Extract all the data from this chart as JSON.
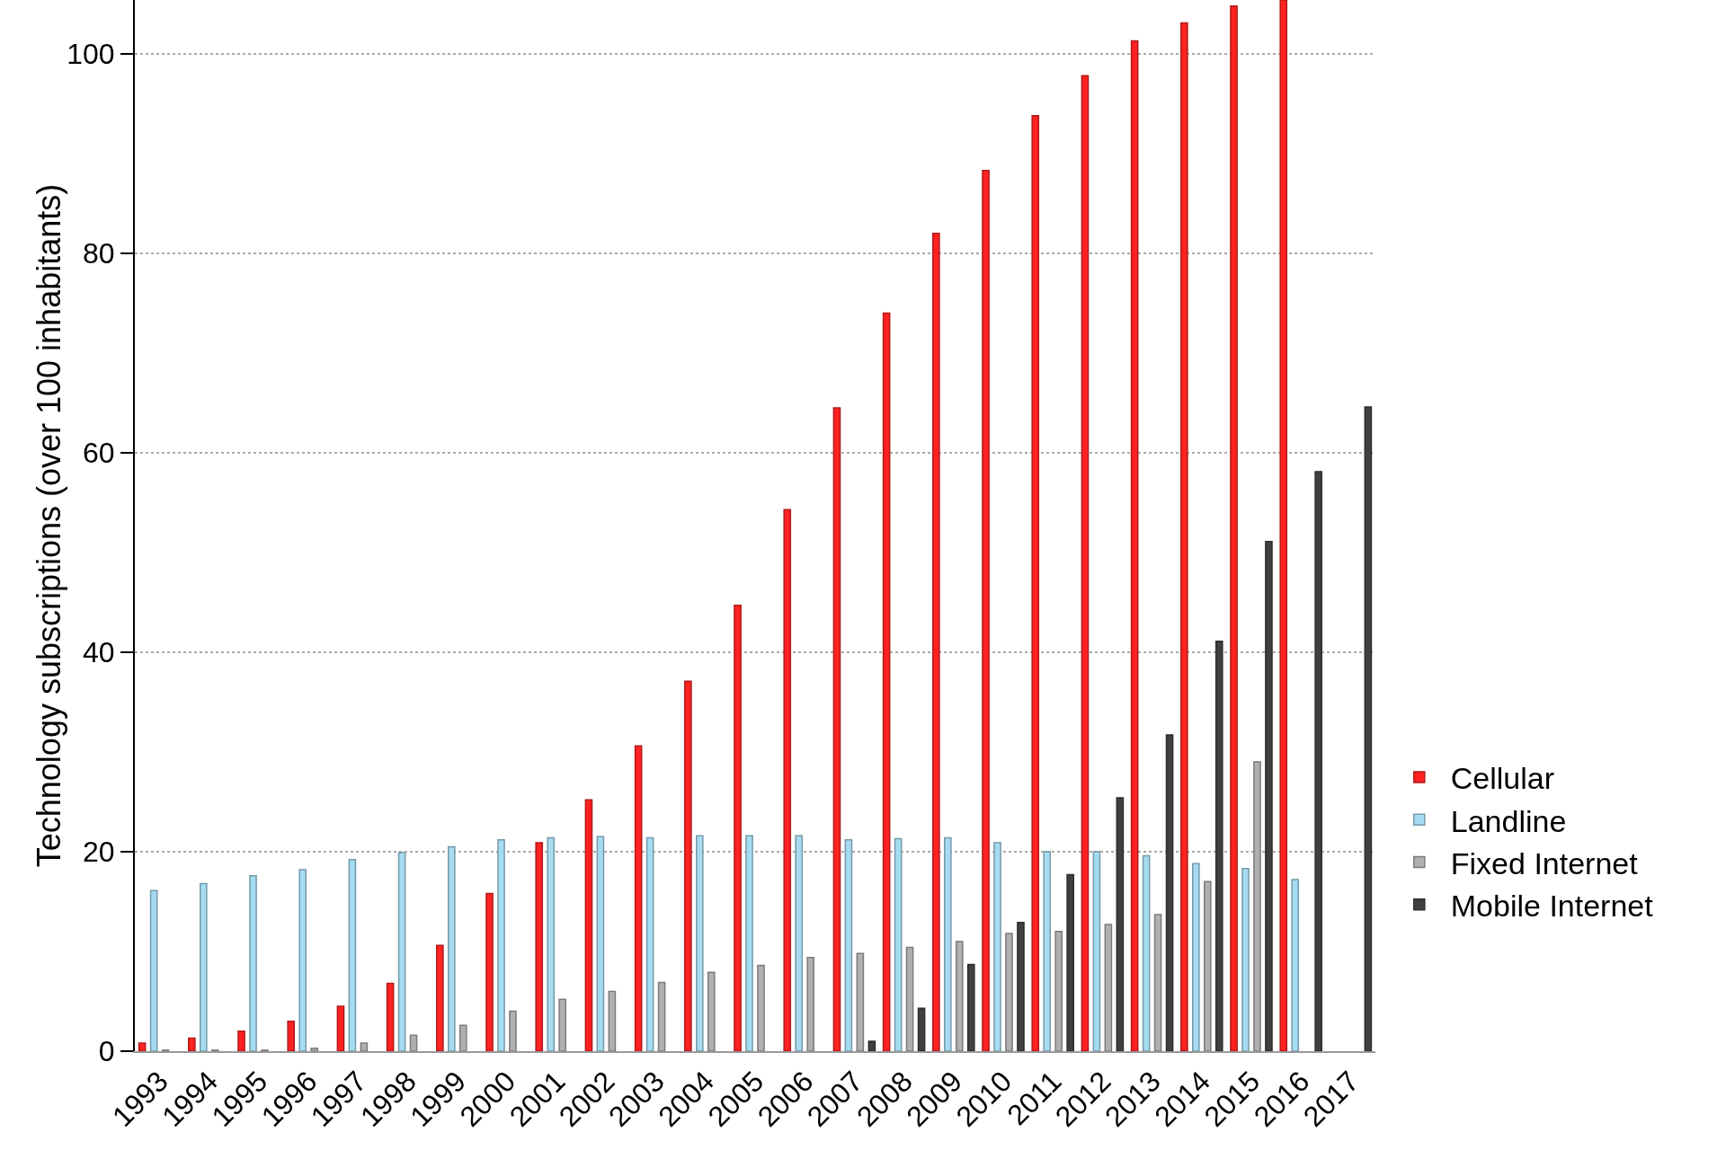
{
  "chart_data": {
    "type": "bar",
    "ylabel": "Technology subscriptions (over 100 inhabitants)",
    "categories": [
      "1993",
      "1994",
      "1995",
      "1996",
      "1997",
      "1998",
      "1999",
      "2000",
      "2001",
      "2002",
      "2003",
      "2004",
      "2005",
      "2006",
      "2007",
      "2008",
      "2009",
      "2010",
      "2011",
      "2012",
      "2013",
      "2014",
      "2015",
      "2016",
      "2017"
    ],
    "series": [
      {
        "name": "Cellular",
        "color": "#ff2222",
        "values": [
          0.8,
          1.3,
          2.0,
          3.0,
          4.5,
          6.8,
          10.6,
          15.8,
          20.9,
          25.2,
          30.6,
          37.1,
          44.7,
          54.3,
          64.5,
          74.0,
          82.0,
          88.3,
          93.8,
          97.8,
          101.3,
          103.1,
          104.8,
          105.4,
          null
        ]
      },
      {
        "name": "Landline",
        "color": "#a6dcf2",
        "values": [
          16.1,
          16.8,
          17.6,
          18.2,
          19.2,
          19.9,
          20.5,
          21.2,
          21.4,
          21.5,
          21.4,
          21.6,
          21.6,
          21.6,
          21.2,
          21.3,
          21.4,
          20.9,
          20.0,
          20.0,
          19.6,
          18.8,
          18.3,
          17.2,
          null
        ]
      },
      {
        "name": "Fixed Internet",
        "color": "#b0b0b0",
        "values": [
          0.1,
          0.1,
          0.1,
          0.3,
          0.8,
          1.6,
          2.6,
          4.0,
          5.2,
          6.0,
          6.9,
          7.9,
          8.6,
          9.4,
          9.8,
          10.4,
          11.0,
          11.8,
          12.0,
          12.7,
          13.7,
          17.0,
          29.0,
          null,
          null
        ]
      },
      {
        "name": "Mobile Internet",
        "color": "#404040",
        "values": [
          null,
          null,
          null,
          null,
          null,
          null,
          null,
          null,
          null,
          null,
          null,
          null,
          null,
          null,
          1.0,
          4.3,
          8.7,
          12.9,
          17.7,
          25.4,
          31.7,
          41.1,
          51.1,
          58.1,
          64.6
        ]
      }
    ],
    "ylim": [
      0,
      105.4
    ],
    "yticks": [
      0,
      20,
      40,
      60,
      80,
      100
    ],
    "grid": "y",
    "legend": "right"
  }
}
